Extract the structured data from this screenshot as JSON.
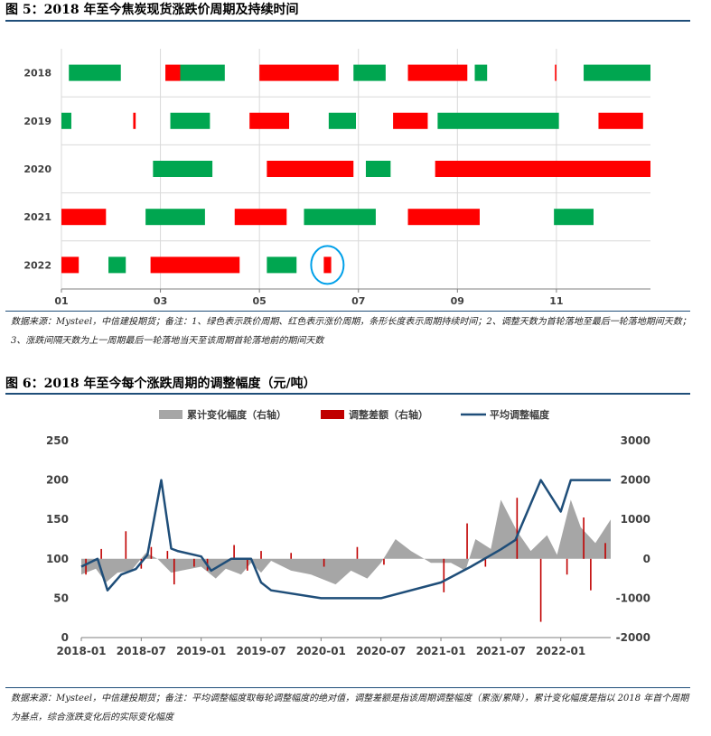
{
  "fig5": {
    "title": "图 5：2018 年至今焦炭现货涨跌价周期及持续时间",
    "note": "数据来源：Mysteel，中信建投期货；备注：1、绿色表示跌价周期、红色表示涨价周期，条形长度表示周期持续时间；2、调整天数为首轮落地至最后一轮落地期间天数；3、涨跌间隔天数为上一周期最后一轮落地当天至该周期首轮落地前的期间天数"
  },
  "fig6": {
    "title": "图 6：2018 年至今每个涨跌周期的调整幅度（元/吨）",
    "note": "数据来源：Mysteel，中信建投期货；备注：平均调整幅度取每轮调整幅度的绝对值，调整差额是指该周期调整幅度（累涨/累降），累计变化幅度是指以 2018 年首个周期为基点，综合涨跌变化后的实际变化幅度"
  },
  "chart_data": [
    {
      "type": "bar",
      "orientation": "horizontal-timeline",
      "categories": [
        "2018",
        "2019",
        "2020",
        "2021",
        "2022"
      ],
      "x_ticks": [
        "01",
        "03",
        "05",
        "07",
        "09",
        "11"
      ],
      "x_tick_months": [
        1,
        3,
        5,
        7,
        9,
        11
      ],
      "xlim": [
        1,
        12.9
      ],
      "colors": {
        "green": "#00a650",
        "red": "#ff0000"
      },
      "legend_meaning": {
        "green": "跌价周期",
        "red": "涨价周期"
      },
      "highlight": {
        "category": "2022",
        "start": 6.3
      },
      "series": [
        {
          "category": "2018",
          "segments": [
            {
              "start": 1.15,
              "end": 2.2,
              "color": "green"
            },
            {
              "start": 3.1,
              "end": 3.4,
              "color": "red"
            },
            {
              "start": 3.4,
              "end": 4.3,
              "color": "green"
            },
            {
              "start": 5.0,
              "end": 6.6,
              "color": "red"
            },
            {
              "start": 6.9,
              "end": 7.55,
              "color": "green"
            },
            {
              "start": 8.0,
              "end": 9.2,
              "color": "red"
            },
            {
              "start": 9.35,
              "end": 9.6,
              "color": "green"
            },
            {
              "start": 10.97,
              "end": 11.0,
              "color": "red"
            },
            {
              "start": 11.55,
              "end": 12.9,
              "color": "green"
            }
          ]
        },
        {
          "category": "2019",
          "segments": [
            {
              "start": 1.0,
              "end": 1.2,
              "color": "green"
            },
            {
              "start": 2.45,
              "end": 2.5,
              "color": "red"
            },
            {
              "start": 3.2,
              "end": 4.0,
              "color": "green"
            },
            {
              "start": 4.8,
              "end": 5.6,
              "color": "red"
            },
            {
              "start": 6.4,
              "end": 6.95,
              "color": "green"
            },
            {
              "start": 7.7,
              "end": 8.4,
              "color": "red"
            },
            {
              "start": 8.6,
              "end": 11.05,
              "color": "green"
            },
            {
              "start": 11.85,
              "end": 12.75,
              "color": "red"
            }
          ]
        },
        {
          "category": "2020",
          "segments": [
            {
              "start": 2.85,
              "end": 4.05,
              "color": "green"
            },
            {
              "start": 5.15,
              "end": 6.9,
              "color": "red"
            },
            {
              "start": 7.15,
              "end": 7.65,
              "color": "green"
            },
            {
              "start": 8.55,
              "end": 12.9,
              "color": "red"
            }
          ]
        },
        {
          "category": "2021",
          "segments": [
            {
              "start": 1.0,
              "end": 1.9,
              "color": "red"
            },
            {
              "start": 2.7,
              "end": 3.9,
              "color": "green"
            },
            {
              "start": 4.5,
              "end": 5.55,
              "color": "red"
            },
            {
              "start": 5.9,
              "end": 7.35,
              "color": "green"
            },
            {
              "start": 8.0,
              "end": 9.45,
              "color": "red"
            },
            {
              "start": 10.95,
              "end": 11.75,
              "color": "green"
            }
          ]
        },
        {
          "category": "2022",
          "segments": [
            {
              "start": 1.0,
              "end": 1.35,
              "color": "red"
            },
            {
              "start": 1.95,
              "end": 2.3,
              "color": "green"
            },
            {
              "start": 2.8,
              "end": 4.6,
              "color": "red"
            },
            {
              "start": 5.15,
              "end": 5.75,
              "color": "green"
            },
            {
              "start": 6.3,
              "end": 6.45,
              "color": "red"
            }
          ]
        }
      ]
    },
    {
      "type": "line",
      "legend": [
        "累计变化幅度（右轴）",
        "调整差额（右轴）",
        "平均调整幅度"
      ],
      "x_ticks": [
        "2018-01",
        "2018-07",
        "2019-01",
        "2019-07",
        "2020-01",
        "2020-07",
        "2021-01",
        "2021-07",
        "2022-01"
      ],
      "x_range": [
        "2018-01",
        "2022-06"
      ],
      "y_left": {
        "ticks": [
          0,
          50,
          100,
          150,
          200,
          250
        ],
        "range": [
          0,
          250
        ]
      },
      "y_right": {
        "ticks": [
          -2000,
          -1000,
          0,
          1000,
          2000,
          3000
        ],
        "range": [
          -2000,
          3000
        ]
      },
      "colors": {
        "cumulative": "#a6a6a6",
        "diff": "#c00000",
        "avg": "#1f4e79"
      },
      "series": [
        {
          "name": "累计变化幅度（右轴）",
          "axis": "right",
          "type": "area",
          "x": [
            "2018-01-01",
            "2018-02-15",
            "2018-03-15",
            "2018-04-20",
            "2018-06-01",
            "2018-07-15",
            "2018-08-20",
            "2018-10-01",
            "2018-11-01",
            "2019-01-01",
            "2019-02-15",
            "2019-03-15",
            "2019-05-01",
            "2019-06-01",
            "2019-07-01",
            "2019-08-01",
            "2019-10-01",
            "2019-12-01",
            "2020-02-15",
            "2020-04-01",
            "2020-05-20",
            "2020-07-01",
            "2020-08-15",
            "2020-10-01",
            "2020-12-01",
            "2021-02-01",
            "2021-03-15",
            "2021-04-15",
            "2021-06-01",
            "2021-07-01",
            "2021-08-20",
            "2021-10-01",
            "2021-11-20",
            "2021-12-20",
            "2022-02-01",
            "2022-03-01",
            "2022-04-15",
            "2022-06-01"
          ],
          "y": [
            -400,
            -250,
            -600,
            -350,
            -300,
            150,
            0,
            -350,
            -300,
            -200,
            -500,
            -250,
            -400,
            -100,
            -350,
            -50,
            -300,
            -400,
            -650,
            -300,
            -500,
            -100,
            500,
            200,
            -100,
            -100,
            -300,
            500,
            250,
            1500,
            700,
            200,
            600,
            100,
            1500,
            800,
            400,
            1000
          ]
        },
        {
          "name": "调整差额（右轴）",
          "axis": "right",
          "type": "bar",
          "x": [
            "2018-01-15",
            "2018-03-01",
            "2018-05-15",
            "2018-07-01",
            "2018-08-01",
            "2018-09-20",
            "2018-10-10",
            "2018-12-10",
            "2019-01-20",
            "2019-04-10",
            "2019-05-20",
            "2019-07-01",
            "2019-10-01",
            "2020-01-10",
            "2020-04-20",
            "2020-07-10",
            "2021-01-10",
            "2021-03-20",
            "2021-05-15",
            "2021-08-20",
            "2021-11-01",
            "2022-01-20",
            "2022-03-10",
            "2022-04-01",
            "2022-05-15"
          ],
          "y": [
            -400,
            250,
            700,
            -250,
            300,
            200,
            -650,
            -200,
            -300,
            350,
            -300,
            200,
            150,
            -200,
            300,
            -150,
            -850,
            900,
            -200,
            1550,
            -1600,
            -400,
            1050,
            -800,
            400
          ]
        },
        {
          "name": "平均调整幅度",
          "axis": "left",
          "type": "line",
          "x": [
            "2018-01-01",
            "2018-02-20",
            "2018-03-20",
            "2018-05-01",
            "2018-06-15",
            "2018-07-20",
            "2018-09-01",
            "2018-10-01",
            "2018-10-20",
            "2019-01-01",
            "2019-02-01",
            "2019-04-01",
            "2019-06-01",
            "2019-07-01",
            "2019-08-01",
            "2020-01-01",
            "2020-04-01",
            "2020-07-01",
            "2021-01-01",
            "2021-04-01",
            "2021-07-01",
            "2021-08-15",
            "2021-11-01",
            "2022-01-01",
            "2022-02-01",
            "2022-06-01"
          ],
          "y": [
            90,
            100,
            60,
            80,
            87,
            105,
            200,
            113,
            110,
            103,
            85,
            100,
            100,
            70,
            60,
            50,
            50,
            50,
            70,
            90,
            112,
            124,
            200,
            160,
            200,
            200
          ]
        }
      ]
    }
  ]
}
